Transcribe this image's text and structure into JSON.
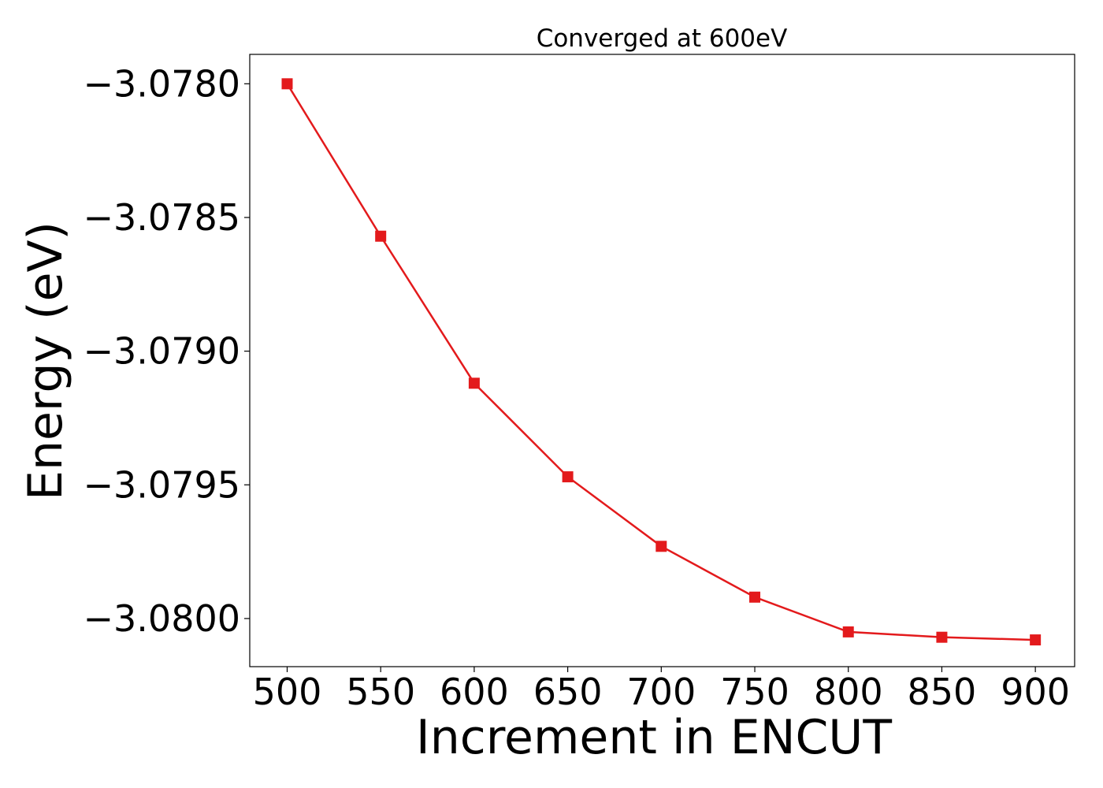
{
  "chart_data": {
    "type": "line",
    "title": "Converged at 600eV",
    "xlabel": "Increment in ENCUT",
    "ylabel": "Energy (eV)",
    "x": [
      500,
      550,
      600,
      650,
      700,
      750,
      800,
      850,
      900
    ],
    "series": [
      {
        "values": [
          -3.078,
          -3.07857,
          -3.07912,
          -3.07947,
          -3.07973,
          -3.07992,
          -3.08005,
          -3.08007,
          -3.08008
        ],
        "color": "#e31a1c",
        "marker": "square"
      }
    ],
    "xticks": [
      500,
      550,
      600,
      650,
      700,
      750,
      800,
      850,
      900
    ],
    "xtick_labels": [
      "500",
      "550",
      "600",
      "650",
      "700",
      "750",
      "800",
      "850",
      "900"
    ],
    "yticks": [
      -3.078,
      -3.0785,
      -3.079,
      -3.0795,
      -3.08
    ],
    "ytick_labels": [
      "−3.0780",
      "−3.0785",
      "−3.0790",
      "−3.0795",
      "−3.0800"
    ],
    "xlim": [
      480,
      921
    ],
    "ylim": [
      -3.08018,
      -3.07789
    ],
    "grid": false,
    "legend": false
  }
}
